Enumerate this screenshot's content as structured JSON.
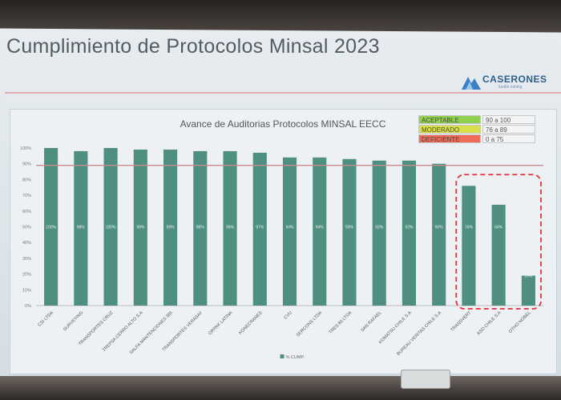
{
  "slide": {
    "title": "Cumplimiento de Protocolos Minsal 2023",
    "logo_text": "CASERONES",
    "logo_sub": "lundin mining"
  },
  "legend_box": [
    {
      "label": "ACEPTABLE",
      "range": "90 a 100",
      "color": "#8fd14f"
    },
    {
      "label": "MODERADO",
      "range": "76 a 89",
      "color": "#d9e04a"
    },
    {
      "label": "DEFICIENTE",
      "range": "0 a 75",
      "color": "#ef6b5a"
    }
  ],
  "chart_data": {
    "type": "bar",
    "title": "Avance de Auditorias Protocolos MINSAL EECC",
    "categories": [
      "CSI LTDA",
      "SURVEYING",
      "TRANSPORTES CRUZ",
      "TREPSA CERRO ALTO S.A",
      "SALFA MANTENCIONES 385",
      "TRANSPORTES VERASAY",
      "ORPAK LATINA",
      "KONECRANES",
      "CVU",
      "SERCONS LTDA",
      "TRES 80 LTDA",
      "SAN RAFAEL",
      "KOMATSU CHILE S.A",
      "BUREAU VERITAS CHILE S.A",
      "TRANSVERT",
      "ASO CHILE S.A",
      "OTHO NOBEL"
    ],
    "series": [
      {
        "name": "% CUMP.",
        "values": [
          100,
          98,
          100,
          99,
          99,
          98,
          98,
          97,
          94,
          94,
          93,
          92,
          92,
          90,
          76,
          64,
          19
        ],
        "value_labels": [
          "100%",
          "98%",
          "100%",
          "99%",
          "99%",
          "98%",
          "98%",
          "97%",
          "94%",
          "94%",
          "93%",
          "92%",
          "92%",
          "90%",
          "76%",
          "64%",
          "19%"
        ]
      }
    ],
    "ylim": [
      0,
      100
    ],
    "yticks": [
      "0%",
      "10%",
      "20%",
      "30%",
      "40%",
      "50%",
      "60%",
      "70%",
      "80%",
      "90%",
      "100%"
    ],
    "threshold": 89,
    "bar_color": "#4f8f82",
    "threshold_color": "#c98a8a",
    "highlight_categories": [
      "TRANSVERT",
      "ASO CHILE S.A",
      "OTHO NOBEL"
    ],
    "highlight_color": "#e8303b",
    "legend": "bottom-center",
    "grid": false
  }
}
